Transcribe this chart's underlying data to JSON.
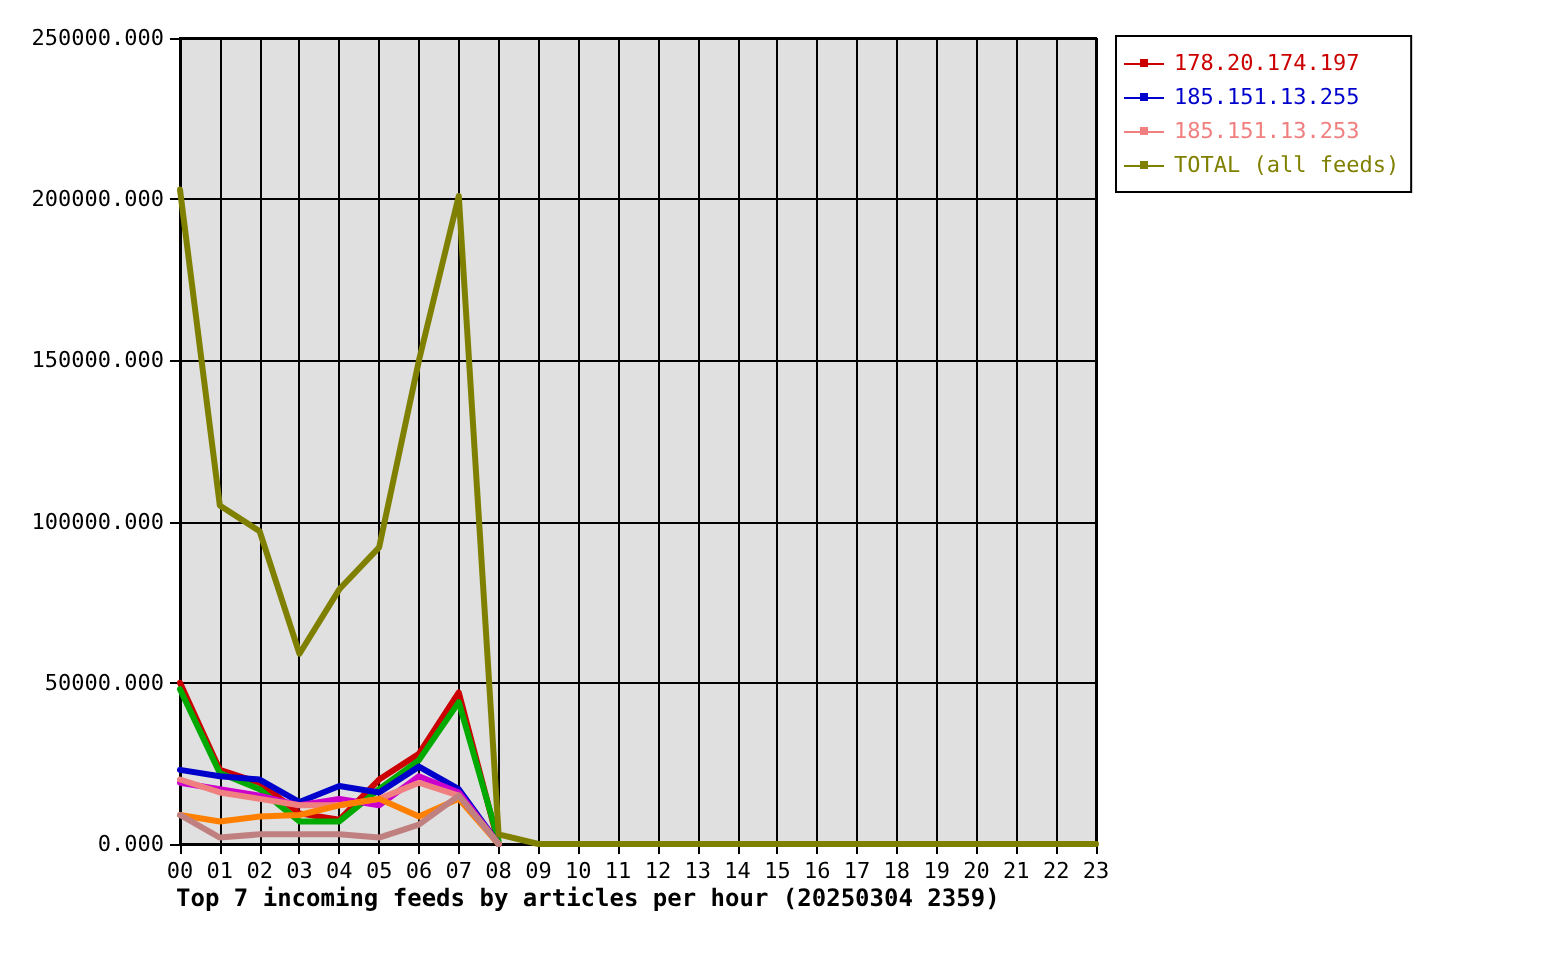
{
  "chart_data": {
    "type": "line",
    "title": "Top 7 incoming feeds by articles per hour (20250304 2359)",
    "categories": [
      "00",
      "01",
      "02",
      "03",
      "04",
      "05",
      "06",
      "07",
      "08",
      "09",
      "10",
      "11",
      "12",
      "13",
      "14",
      "15",
      "16",
      "17",
      "18",
      "19",
      "20",
      "21",
      "22",
      "23"
    ],
    "series": [
      {
        "name": "178.20.174.197",
        "color": "#cc0000",
        "values": [
          50000,
          23000,
          19000,
          9500,
          7500,
          20000,
          28000,
          47000,
          0,
          null,
          null,
          null,
          null,
          null,
          null,
          null,
          null,
          null,
          null,
          null,
          null,
          null,
          null,
          null
        ]
      },
      {
        "color": "#00aa00",
        "values": [
          48000,
          22000,
          17000,
          7000,
          7000,
          17000,
          26000,
          44000,
          1000,
          null,
          null,
          null,
          null,
          null,
          null,
          null,
          null,
          null,
          null,
          null,
          null,
          null,
          null,
          null
        ]
      },
      {
        "name": "185.151.13.255",
        "color": "#0000cc",
        "values": [
          23000,
          21000,
          20000,
          13000,
          18000,
          16000,
          24000,
          17000,
          0,
          null,
          null,
          null,
          null,
          null,
          null,
          null,
          null,
          null,
          null,
          null,
          null,
          null,
          null,
          null
        ]
      },
      {
        "color": "#cc00cc",
        "values": [
          19000,
          17000,
          15000,
          12000,
          14000,
          12000,
          21000,
          16000,
          0,
          null,
          null,
          null,
          null,
          null,
          null,
          null,
          null,
          null,
          null,
          null,
          null,
          null,
          null,
          null
        ]
      },
      {
        "name": "185.151.13.253",
        "color": "#f08080",
        "values": [
          20000,
          16000,
          14000,
          12000,
          12000,
          14000,
          19000,
          15000,
          0,
          null,
          null,
          null,
          null,
          null,
          null,
          null,
          null,
          null,
          null,
          null,
          null,
          null,
          null,
          null
        ]
      },
      {
        "color": "#ff8000",
        "values": [
          9000,
          7000,
          8500,
          9000,
          12000,
          14000,
          8500,
          14000,
          0,
          null,
          null,
          null,
          null,
          null,
          null,
          null,
          null,
          null,
          null,
          null,
          null,
          null,
          null,
          null
        ]
      },
      {
        "color": "#c08080",
        "values": [
          9000,
          2000,
          3000,
          3000,
          3000,
          2000,
          6000,
          15000,
          0,
          null,
          null,
          null,
          null,
          null,
          null,
          null,
          null,
          null,
          null,
          null,
          null,
          null,
          null,
          null
        ]
      },
      {
        "name": "TOTAL (all feeds)",
        "color": "#808000",
        "values": [
          203000,
          105000,
          97000,
          59000,
          79000,
          92000,
          150000,
          201000,
          3000,
          0,
          0,
          0,
          0,
          0,
          0,
          0,
          0,
          0,
          0,
          0,
          0,
          0,
          0,
          0
        ]
      }
    ],
    "ylim": [
      0,
      250000
    ],
    "yticks": [
      {
        "value": 0,
        "label": "0.000"
      },
      {
        "value": 50000,
        "label": "50000.000"
      },
      {
        "value": 100000,
        "label": "100000.000"
      },
      {
        "value": 150000,
        "label": "150000.000"
      },
      {
        "value": 200000,
        "label": "200000.000"
      },
      {
        "value": 250000,
        "label": "250000.000"
      }
    ],
    "grid": true,
    "legend": "right"
  }
}
